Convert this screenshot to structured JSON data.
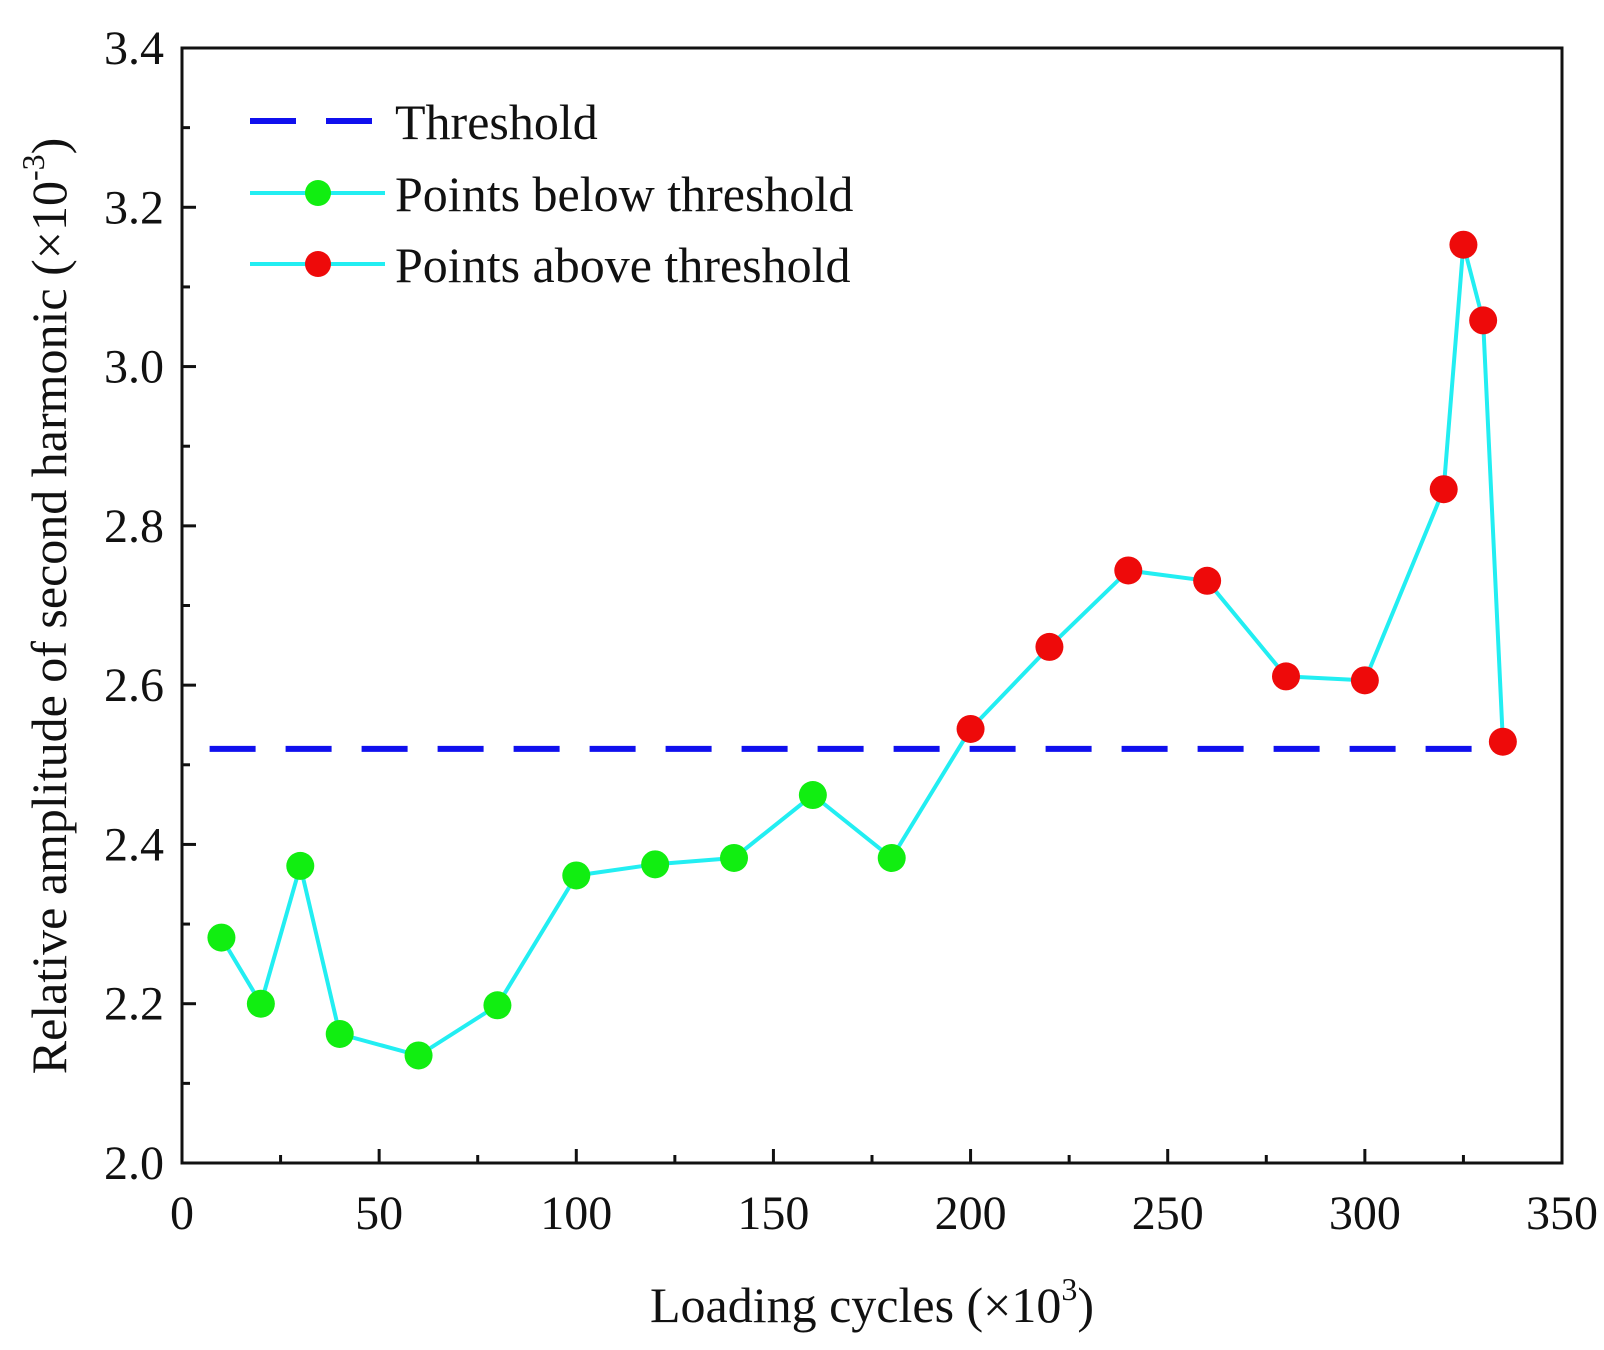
{
  "chart_data": {
    "type": "line",
    "xlabel": "Loading cycles (×10",
    "xlabel_sup": "3",
    "xlabel_close": ")",
    "ylabel": "Relative amplitude of second harmonic (×10",
    "ylabel_sup": "-3",
    "ylabel_close": ")",
    "xlim": [
      0,
      350
    ],
    "ylim": [
      2.0,
      3.4
    ],
    "xticks": [
      0,
      50,
      100,
      150,
      200,
      250,
      300,
      350
    ],
    "xtick_labels": [
      "0",
      "50",
      "100",
      "150",
      "200",
      "250",
      "300",
      "350"
    ],
    "xminor": [
      25,
      75,
      125,
      175,
      225,
      275,
      325
    ],
    "yticks": [
      2.0,
      2.2,
      2.4,
      2.6,
      2.8,
      3.0,
      3.2,
      3.4
    ],
    "ytick_labels": [
      "2.0",
      "2.2",
      "2.4",
      "2.6",
      "2.8",
      "3.0",
      "3.2",
      "3.4"
    ],
    "yminor": [
      2.1,
      2.3,
      2.5,
      2.7,
      2.9,
      3.1,
      3.3
    ],
    "threshold": {
      "name": "Threshold",
      "value": 2.52,
      "x_range": [
        0,
        331
      ],
      "color": "#1010ee"
    },
    "line_color": "#22eef2",
    "series": [
      {
        "name": "Points below threshold",
        "color": "#11ee11",
        "x": [
          10,
          20,
          30,
          40,
          60,
          80,
          100,
          120,
          140,
          160,
          180
        ],
        "y": [
          2.283,
          2.2,
          2.373,
          2.162,
          2.135,
          2.198,
          2.361,
          2.375,
          2.383,
          2.462,
          2.383
        ]
      },
      {
        "name": "Points above threshold",
        "color": "#ee0a0a",
        "x": [
          200,
          220,
          240,
          260,
          280,
          300,
          320,
          325,
          330,
          335
        ],
        "y": [
          2.545,
          2.648,
          2.744,
          2.731,
          2.611,
          2.606,
          2.846,
          3.153,
          3.058,
          2.529
        ]
      }
    ],
    "legend": {
      "position": "top-left",
      "entries": [
        "Threshold",
        "Points below threshold",
        "Points above threshold"
      ]
    }
  }
}
